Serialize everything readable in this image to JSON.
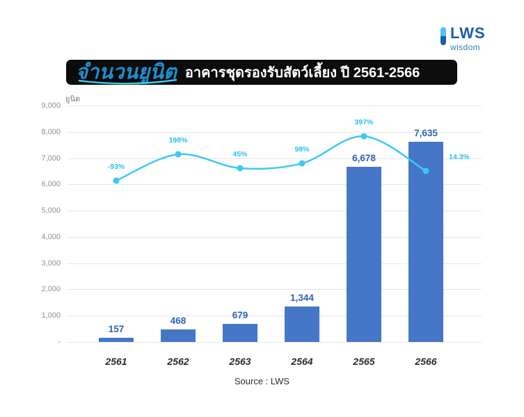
{
  "logo": {
    "brand": "LWS",
    "tagline": "wisdom"
  },
  "title": {
    "highlight": "จำนวนยูนิต",
    "rest": "อาคารชุดรองรับสัตว์เลี้ยง ปี 2561-2566"
  },
  "chart_data": {
    "type": "bar",
    "title": "จำนวนยูนิต อาคารชุดรองรับสัตว์เลี้ยง ปี 2561-2566",
    "categories": [
      "2561",
      "2562",
      "2563",
      "2564",
      "2565",
      "2566"
    ],
    "series": [
      {
        "name": "units_bar",
        "type": "bar",
        "values": [
          157,
          468,
          679,
          1344,
          6678,
          7635
        ],
        "labels": [
          "157",
          "468",
          "679",
          "1,344",
          "6,678",
          "7,635"
        ],
        "color": "#4576C8"
      },
      {
        "name": "growth_line",
        "type": "line",
        "values": [
          -93,
          198,
          45,
          98,
          397,
          14.3
        ],
        "labels": [
          "-93%",
          "198%",
          "45%",
          "98%",
          "397%",
          "14.3%"
        ],
        "color": "#3EC9F2"
      }
    ],
    "xlabel": "",
    "ylabel": "ยูนิต",
    "ylim": [
      0,
      9000
    ],
    "yticks": [
      "9,000",
      "8,000",
      "7,000",
      "6,000",
      "5,000",
      "4,000",
      "3,000",
      "2,000",
      "1,000",
      "-"
    ],
    "grid": true,
    "legend": "none",
    "source": "Source : LWS"
  },
  "colors": {
    "bar": "#4576C8",
    "bar_label": "#2D63B5",
    "line": "#3EC9F2",
    "percent_label": "#2CBEE9",
    "grid": "#E7E7E7",
    "tick": "#8F8F8F",
    "banner_bg": "#0C0C0C",
    "banner_highlight": "#1E8FD0",
    "brand_blue": "#1B5CA8"
  }
}
